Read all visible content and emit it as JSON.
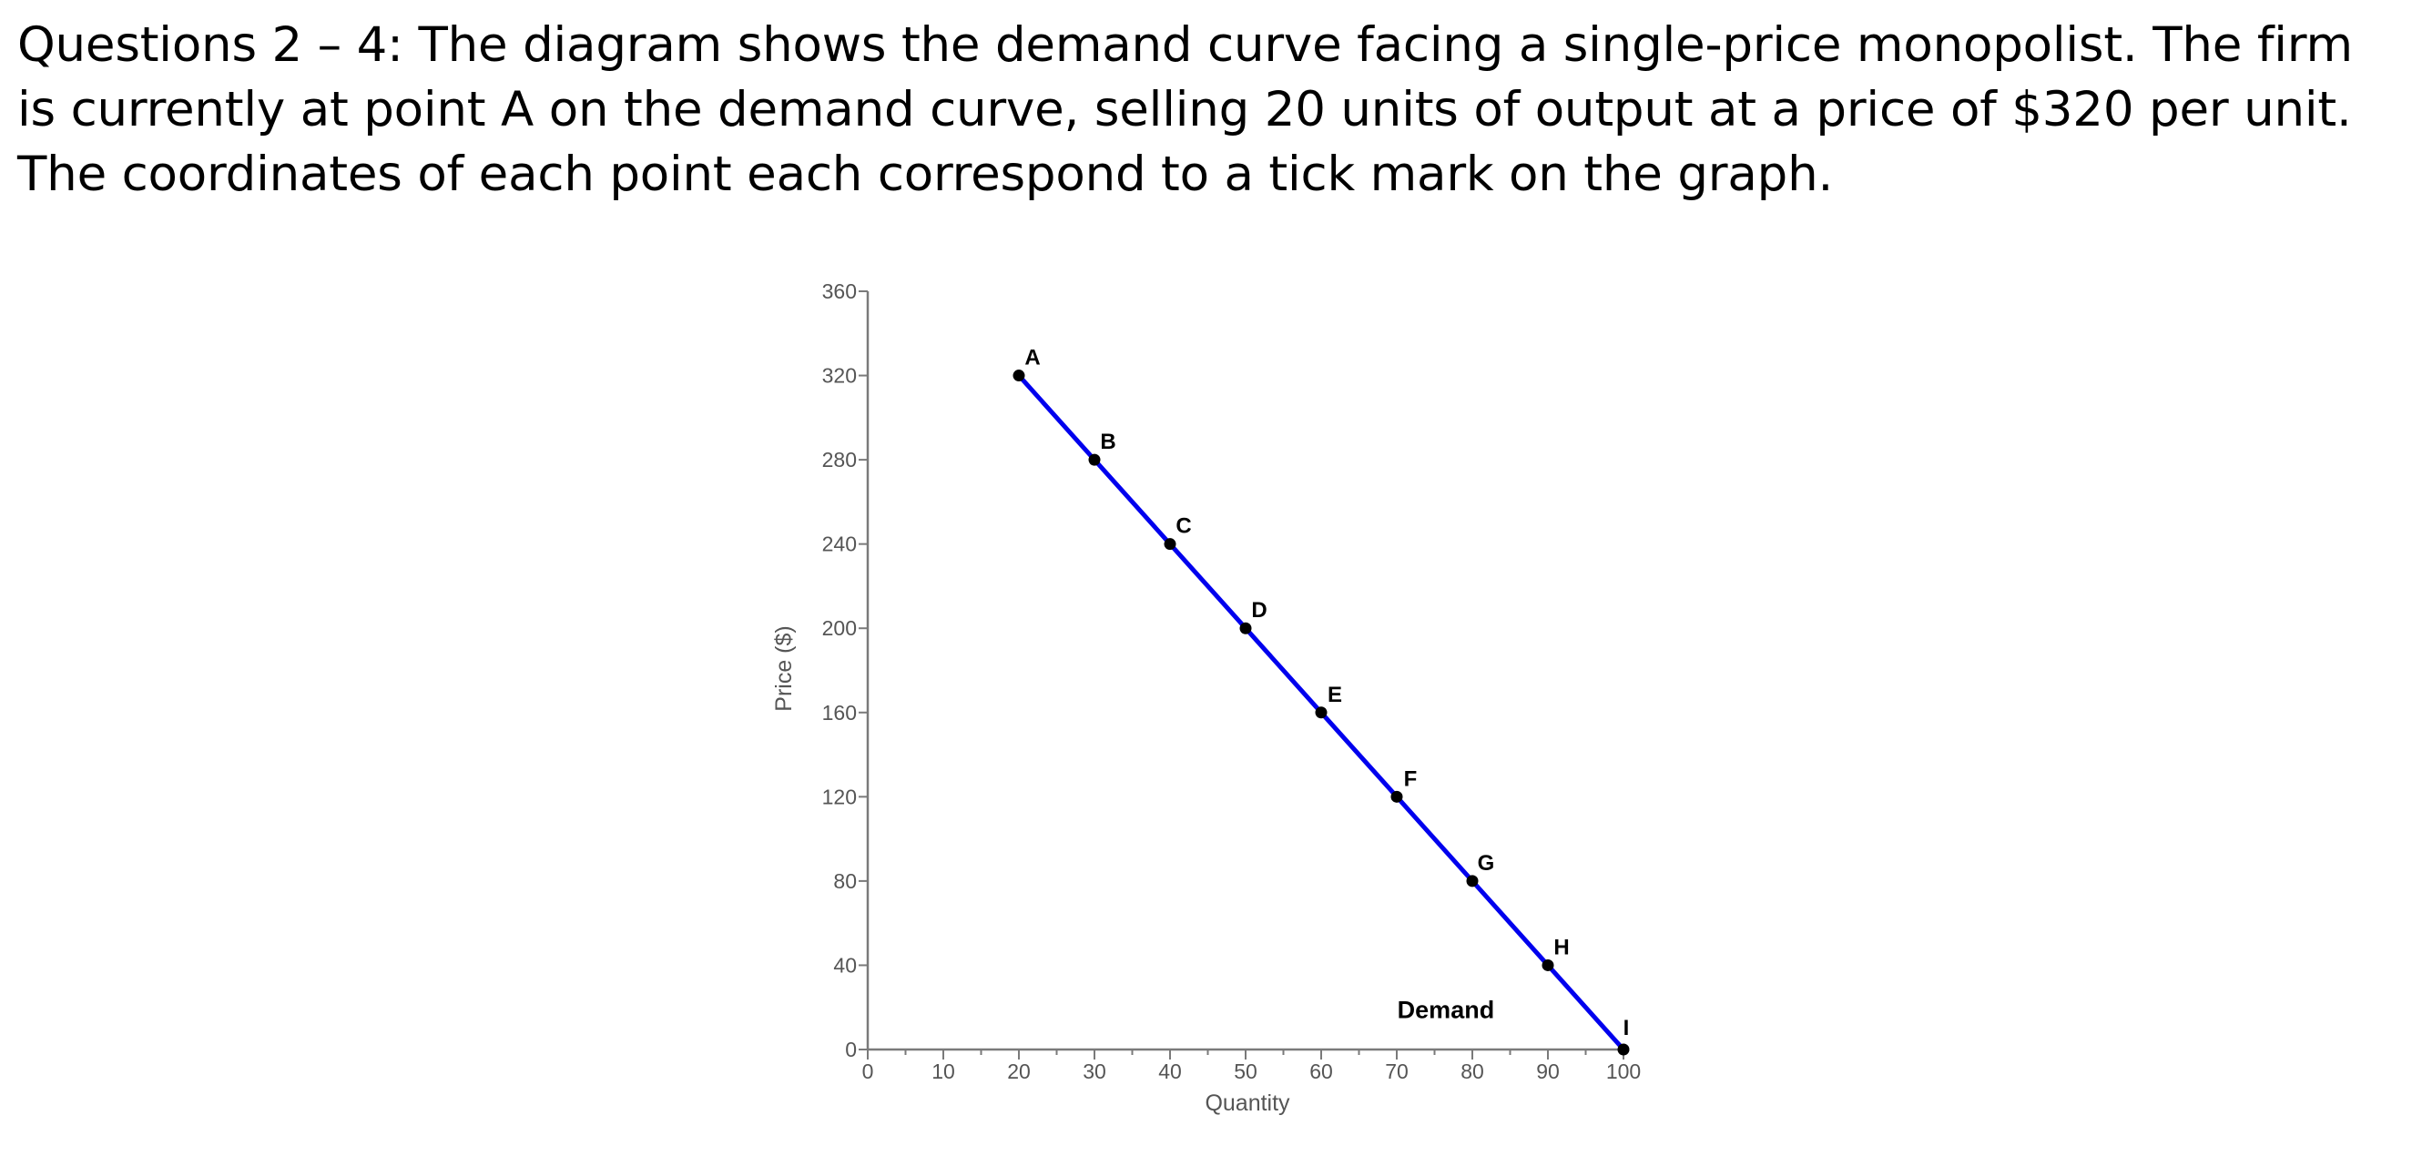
{
  "question": {
    "text": "Questions 2 – 4: The diagram shows the demand curve facing a single-price monopolist. The firm is currently at point A on the demand curve, selling 20 units of output at a price of $320 per unit. The coordinates of each point each correspond to a tick mark on the graph."
  },
  "chart_data": {
    "type": "line",
    "title": "",
    "xlabel": "Quantity",
    "ylabel": "Price ($)",
    "xlim": [
      0,
      100
    ],
    "ylim": [
      0,
      360
    ],
    "x_ticks": [
      0,
      10,
      20,
      30,
      40,
      50,
      60,
      70,
      80,
      90,
      100
    ],
    "y_ticks": [
      0,
      40,
      80,
      120,
      160,
      200,
      240,
      280,
      320,
      360
    ],
    "grid": false,
    "series": [
      {
        "name": "Demand",
        "color": "#0000ee",
        "points": [
          {
            "label": "A",
            "x": 20,
            "y": 320
          },
          {
            "label": "B",
            "x": 30,
            "y": 280
          },
          {
            "label": "C",
            "x": 40,
            "y": 240
          },
          {
            "label": "D",
            "x": 50,
            "y": 200
          },
          {
            "label": "E",
            "x": 60,
            "y": 160
          },
          {
            "label": "F",
            "x": 70,
            "y": 120
          },
          {
            "label": "G",
            "x": 80,
            "y": 80
          },
          {
            "label": "H",
            "x": 90,
            "y": 40
          },
          {
            "label": "I",
            "x": 100,
            "y": 0
          }
        ]
      }
    ]
  }
}
